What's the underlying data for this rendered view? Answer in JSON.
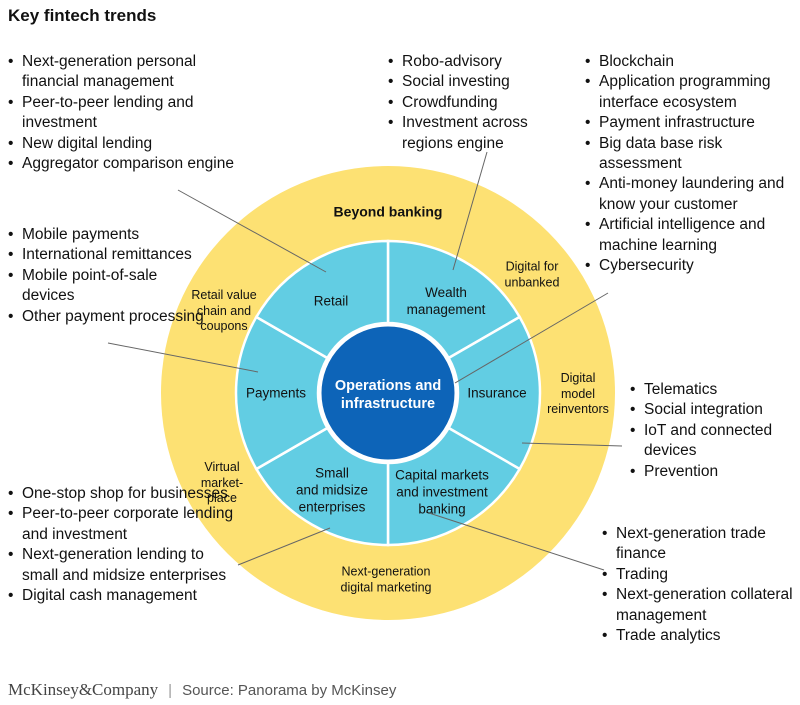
{
  "title": "Key fintech trends",
  "center": {
    "label": "Operations and\ninfrastructure"
  },
  "segments": [
    {
      "id": "retail",
      "label": "Retail"
    },
    {
      "id": "wealth",
      "label": "Wealth\nmanagement"
    },
    {
      "id": "insurance",
      "label": "Insurance"
    },
    {
      "id": "capital",
      "label": "Capital markets\nand investment\nbanking"
    },
    {
      "id": "sme",
      "label": "Small\nand midsize\nenterprises"
    },
    {
      "id": "payments",
      "label": "Payments"
    }
  ],
  "outer_ring": {
    "title": "Beyond banking",
    "items": [
      "Digital for\nunbanked",
      "Digital\nmodel\nreinventors",
      "Next-generation\ndigital marketing",
      "Virtual\nmarket-\nplace",
      "Retail value\nchain and\ncoupons"
    ]
  },
  "lists": {
    "retail": [
      "Next-generation personal financial management",
      "Peer-to-peer lending and investment",
      "New digital lending",
      "Aggregator comparison engine"
    ],
    "payments": [
      "Mobile payments",
      "International remittances",
      "Mobile point-of-sale devices",
      "Other payment processing"
    ],
    "sme": [
      "One-stop shop for businesses",
      "Peer-to-peer corporate lending and investment",
      "Next-generation lending to small and midsize enterprises",
      "Digital cash management"
    ],
    "wealth": [
      "Robo-advisory",
      "Social investing",
      "Crowdfunding",
      "Investment across regions engine"
    ],
    "operations": [
      "Blockchain",
      "Application programming interface ecosystem",
      "Payment infrastructure",
      "Big data base risk assessment",
      "Anti-money laundering and know your customer",
      "Artificial intelligence and machine learning",
      "Cybersecurity"
    ],
    "insurance": [
      "Telematics",
      "Social integration",
      "IoT and connected devices",
      "Prevention"
    ],
    "capital": [
      "Next-generation trade finance",
      "Trading",
      "Next-generation collateral management",
      "Trade analytics"
    ]
  },
  "footer": {
    "brand": "McKinsey&Company",
    "separator": "|",
    "source": "Source: Panorama by McKinsey"
  },
  "colors": {
    "outer_ring": "#fde173",
    "segment": "#62cde3",
    "center": "#0d64b8",
    "connector": "#666666"
  }
}
